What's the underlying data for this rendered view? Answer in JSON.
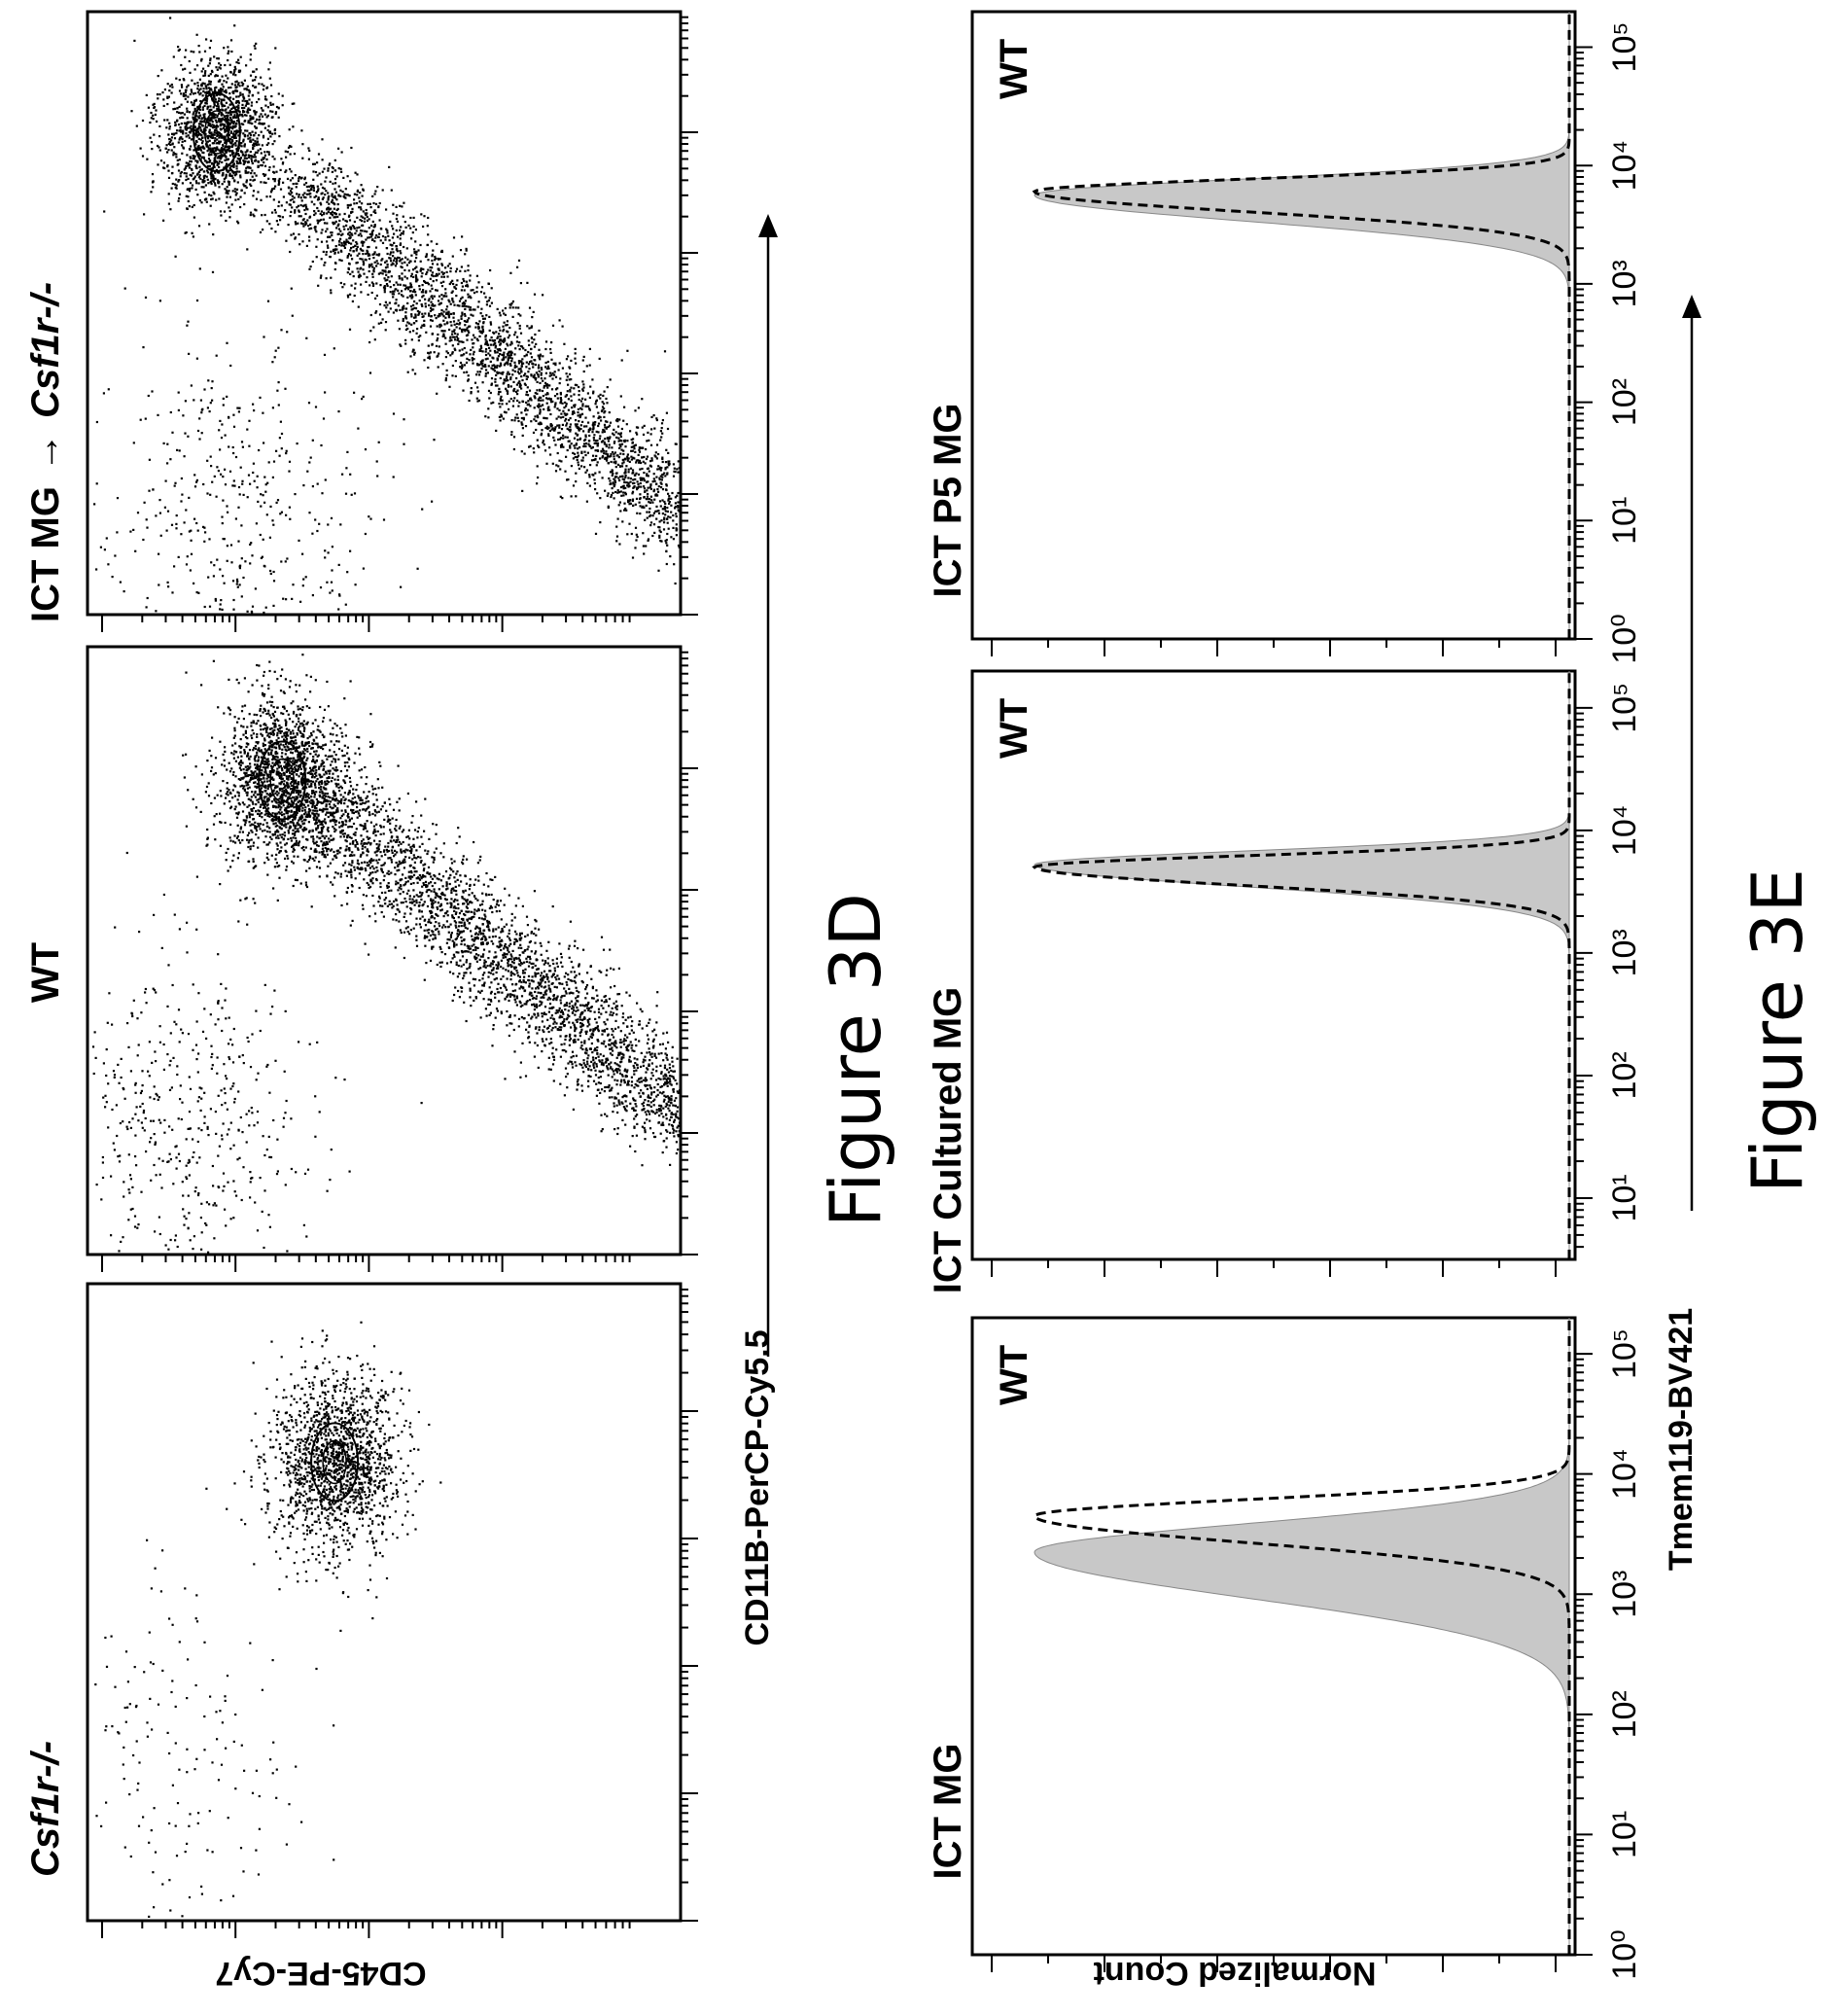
{
  "figure_3d": {
    "caption": "Figure 3D",
    "y_axis_label": "CD45-PE-Cy7",
    "x_axis_label": "CD11B-PerCP-Cy5.5",
    "panels": [
      {
        "title": "Csf1r-/-",
        "title_italic": true
      },
      {
        "title": "WT",
        "title_italic": false
      },
      {
        "title_prefix": "ICT MG",
        "title_suffix": "Csf1r-/-",
        "arrow": "→"
      }
    ]
  },
  "figure_3e": {
    "caption": "Figure 3E",
    "y_axis_label": "Normalized Count",
    "x_axis_label": "Tmem119-BV421",
    "panels": [
      {
        "title": "ICT MG",
        "legend": "WT"
      },
      {
        "title": "ICT Cultured MG",
        "legend": "WT"
      },
      {
        "title": "ICT P5 MG",
        "legend": "WT"
      }
    ],
    "tick_labels": [
      [
        "10⁰",
        "10¹",
        "10²",
        "10³",
        "10⁴",
        "10⁵"
      ],
      [
        "10¹",
        "10²",
        "10³",
        "10⁴",
        "10⁵"
      ],
      [
        "10⁰",
        "10¹",
        "10²",
        "10³",
        "10⁴",
        "10⁵"
      ]
    ]
  },
  "chart_data": [
    {
      "type": "scatter",
      "title": "Csf1r-/-",
      "xlabel": "CD11B-PerCP-Cy5.5",
      "ylabel": "CD45-PE-Cy7",
      "x_scale": "log",
      "y_scale": "log",
      "populations": [
        {
          "name": "",
          "center": {
            "x": 3.6,
            "y": 1.7
          },
          "spread": 0.35,
          "density": "high"
        },
        {
          "name": "",
          "center": {
            "x": 1.2,
            "y": 0.5
          },
          "spread": 0.8,
          "density": "low"
        }
      ]
    },
    {
      "type": "scatter",
      "title": "WT",
      "xlabel": "CD11B-PerCP-Cy5.5",
      "ylabel": "CD45-PE-Cy7",
      "x_scale": "log",
      "y_scale": "log",
      "populations": [
        {
          "name": "",
          "center": {
            "x": 3.9,
            "y": 1.3
          },
          "spread": 0.35,
          "density": "high"
        },
        {
          "name": "",
          "center": {
            "x": 2.6,
            "y": 2.9
          },
          "spread": 0.9,
          "density": "diagonal"
        },
        {
          "name": "",
          "center": {
            "x": 1.0,
            "y": 0.6
          },
          "spread": 0.7,
          "density": "low"
        }
      ]
    },
    {
      "type": "scatter",
      "title": "ICT MG → Csf1r-/-",
      "xlabel": "CD11B-PerCP-Cy5.5",
      "ylabel": "CD45-PE-Cy7",
      "x_scale": "log",
      "y_scale": "log",
      "populations": [
        {
          "name": "",
          "center": {
            "x": 4.0,
            "y": 0.8
          },
          "spread": 0.3,
          "density": "high"
        },
        {
          "name": "",
          "center": {
            "x": 2.2,
            "y": 3.0
          },
          "spread": 1.3,
          "density": "diagonal"
        },
        {
          "name": "",
          "center": {
            "x": 0.8,
            "y": 0.9
          },
          "spread": 0.8,
          "density": "low"
        }
      ]
    },
    {
      "type": "area",
      "title": "ICT MG",
      "xlabel": "Tmem119-BV421",
      "ylabel": "Normalized Count",
      "x_scale": "log",
      "xlim": [
        0,
        5.3
      ],
      "series": [
        {
          "name": "",
          "style": "filled",
          "peak_log10": 3.35,
          "width": 0.38
        },
        {
          "name": "WT",
          "style": "dashed",
          "peak_log10": 3.65,
          "width": 0.22
        }
      ]
    },
    {
      "type": "area",
      "title": "ICT Cultured MG",
      "xlabel": "Tmem119-BV421",
      "ylabel": "Normalized Count",
      "x_scale": "log",
      "xlim": [
        0.5,
        5.3
      ],
      "series": [
        {
          "name": "",
          "style": "filled",
          "peak_log10": 3.72,
          "width": 0.18
        },
        {
          "name": "WT",
          "style": "dashed",
          "peak_log10": 3.7,
          "width": 0.15
        }
      ]
    },
    {
      "type": "area",
      "title": "ICT P5 MG",
      "xlabel": "Tmem119-BV421",
      "ylabel": "Normalized Count",
      "x_scale": "log",
      "xlim": [
        0,
        5.3
      ],
      "series": [
        {
          "name": "",
          "style": "filled",
          "peak_log10": 3.75,
          "width": 0.22
        },
        {
          "name": "WT",
          "style": "dashed",
          "peak_log10": 3.78,
          "width": 0.17
        }
      ]
    }
  ]
}
